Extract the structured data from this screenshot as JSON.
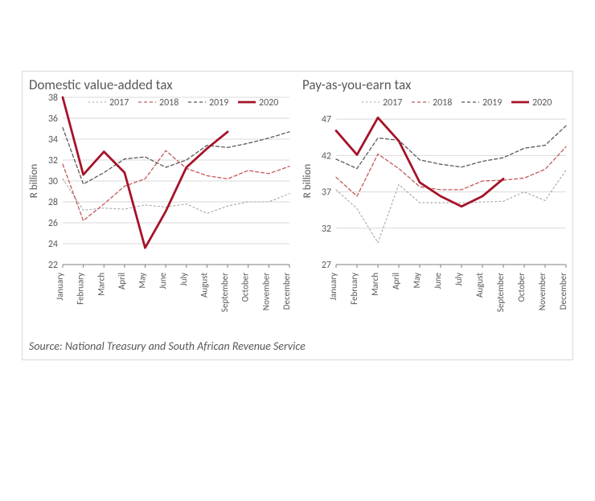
{
  "source_line": "Source: National Treasury and South African Revenue Service",
  "months": [
    "January",
    "February",
    "March",
    "April",
    "May",
    "June",
    "July",
    "August",
    "September",
    "October",
    "November",
    "December"
  ],
  "legend_labels": {
    "s2017": "2017",
    "s2018": "2018",
    "s2019": "2019",
    "s2020": "2020"
  },
  "colors": {
    "s2017": "#a6a6a6",
    "s2018": "#c45a5a",
    "s2019": "#595959",
    "s2020": "#a5132a",
    "axis": "#7f7f7f",
    "grid": "#d9d9d9",
    "text": "#595959",
    "bg": "#ffffff",
    "border": "#d9d9d9"
  },
  "line_styles": {
    "s2017": {
      "width": 1.1,
      "dash": "2 3"
    },
    "s2018": {
      "width": 1.3,
      "dash": "4 3"
    },
    "s2019": {
      "width": 1.3,
      "dash": "4 3"
    },
    "s2020": {
      "width": 2.8,
      "dash": ""
    }
  },
  "charts": {
    "left": {
      "title": "Domestic value-added tax",
      "ylabel": "R billion",
      "ylim": [
        22,
        38
      ],
      "ytick_step": 2,
      "series": {
        "s2017": [
          30.2,
          27.2,
          27.4,
          27.3,
          27.7,
          27.5,
          27.8,
          26.9,
          27.6,
          28.0,
          28.0,
          28.8
        ],
        "s2018": [
          31.6,
          26.2,
          27.8,
          29.5,
          30.2,
          32.9,
          31.2,
          30.5,
          30.2,
          31.0,
          30.7,
          31.4
        ],
        "s2019": [
          35.1,
          29.7,
          30.8,
          32.1,
          32.3,
          31.3,
          32.0,
          33.4,
          33.2,
          33.6,
          34.1,
          34.7
        ],
        "s2020": [
          38.0,
          30.6,
          32.8,
          30.8,
          23.6,
          27.1,
          31.3,
          33.1,
          34.7,
          null,
          null,
          null
        ]
      }
    },
    "right": {
      "title": "Pay-as-you-earn tax",
      "ylabel": "R billion",
      "ylim": [
        27,
        50
      ],
      "yticks": [
        27,
        32,
        37,
        42,
        47
      ],
      "series": {
        "s2017": [
          37.3,
          34.7,
          30.0,
          38.0,
          35.5,
          35.5,
          35.5,
          35.6,
          35.7,
          37.0,
          35.8,
          40.0
        ],
        "s2018": [
          39.0,
          36.4,
          42.2,
          40.2,
          37.7,
          37.3,
          37.3,
          38.5,
          38.6,
          38.9,
          40.1,
          43.2
        ],
        "s2019": [
          41.5,
          40.2,
          44.4,
          44.1,
          41.4,
          40.8,
          40.4,
          41.2,
          41.7,
          43.0,
          43.4,
          46.1
        ],
        "s2020": [
          45.4,
          42.1,
          47.2,
          44.0,
          38.3,
          36.4,
          35.0,
          36.4,
          38.8,
          null,
          null,
          null
        ]
      }
    }
  },
  "typography": {
    "title_pt": 17,
    "axis_pt": 12,
    "legend_pt": 12,
    "source_pt": 14
  },
  "layout": {
    "outer_w": 686,
    "outer_h": 360,
    "subplot_arrangement": "1x2"
  }
}
